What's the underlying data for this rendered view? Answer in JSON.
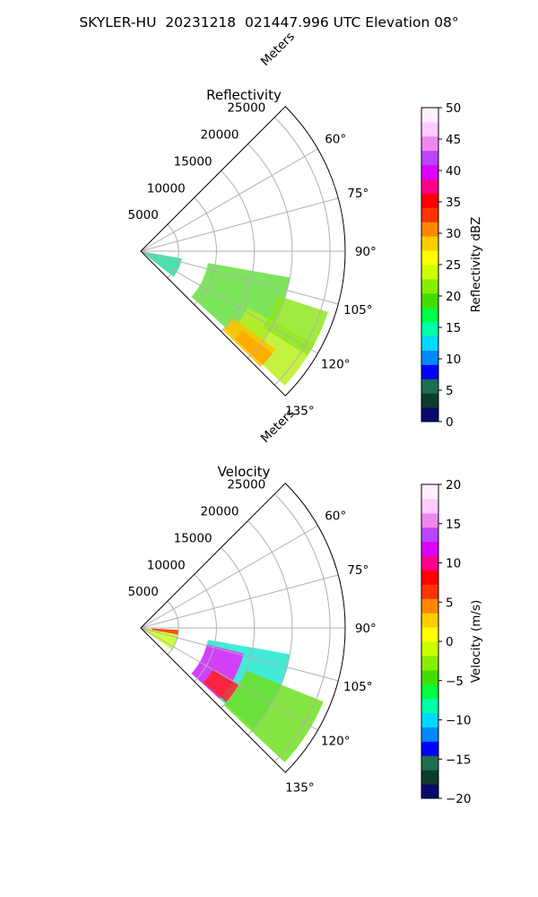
{
  "title": "SKYLER-HU  20231218  021447.996 UTC Elevation 08°",
  "chart_data": [
    {
      "type": "polar_sector",
      "title": "Reflectivity",
      "radial_label": "Meters",
      "radial_ticks": [
        "5000",
        "10000",
        "15000",
        "20000",
        "25000"
      ],
      "radial_tick_values": [
        5000,
        10000,
        15000,
        20000,
        25000
      ],
      "rmax": 27000,
      "theta_min_deg": 45,
      "theta_max_deg": 135,
      "theta_ticks": [
        "60°",
        "75°",
        "90°",
        "105°",
        "120°",
        "135°"
      ],
      "theta_tick_values": [
        60,
        75,
        90,
        105,
        120,
        135
      ],
      "grid": true,
      "colorbar": {
        "label": "Reflectivity dBZ",
        "min": 0,
        "max": 50,
        "ticks": [
          "0",
          "5",
          "10",
          "15",
          "20",
          "25",
          "30",
          "35",
          "40",
          "45",
          "50"
        ],
        "colors": [
          "#0a0a6e",
          "#0b3d2e",
          "#1e6e50",
          "#0000ff",
          "#0088ff",
          "#00d8ff",
          "#00ffaa",
          "#00ff40",
          "#44dd00",
          "#88ee00",
          "#ccff00",
          "#ffff00",
          "#ffcc00",
          "#ff8800",
          "#ff3300",
          "#ff0000",
          "#ff0088",
          "#dd00ff",
          "#bb44ff",
          "#ee88ee",
          "#ffccff",
          "#fff0ff"
        ]
      },
      "echo_regions": [
        {
          "r0": 0,
          "r1": 5500,
          "t0": 100,
          "t1": 128,
          "color": "#20e0a0"
        },
        {
          "r0": 9000,
          "r1": 20000,
          "t0": 100,
          "t1": 132,
          "color": "#66e040"
        },
        {
          "r0": 16000,
          "r1": 26000,
          "t0": 118,
          "t1": 133,
          "color": "#b8f020"
        },
        {
          "r0": 17000,
          "r1": 22000,
          "t0": 128,
          "t1": 133,
          "color": "#ff2a00"
        },
        {
          "r0": 15000,
          "r1": 22000,
          "t0": 126,
          "t1": 134,
          "color": "#ffc000"
        },
        {
          "r0": 19000,
          "r1": 26000,
          "t0": 108,
          "t1": 122,
          "color": "#8ee820"
        }
      ]
    },
    {
      "type": "polar_sector",
      "title": "Velocity",
      "radial_label": "Meters",
      "radial_ticks": [
        "5000",
        "10000",
        "15000",
        "20000",
        "25000"
      ],
      "radial_tick_values": [
        5000,
        10000,
        15000,
        20000,
        25000
      ],
      "rmax": 27000,
      "theta_min_deg": 45,
      "theta_max_deg": 135,
      "theta_ticks": [
        "60°",
        "75°",
        "90°",
        "105°",
        "120°",
        "135°"
      ],
      "theta_tick_values": [
        60,
        75,
        90,
        105,
        120,
        135
      ],
      "grid": true,
      "colorbar": {
        "label": "Velocity (m/s)",
        "min": -20,
        "max": 20,
        "ticks": [
          "−20",
          "−15",
          "−10",
          "−5",
          "0",
          "5",
          "10",
          "15",
          "20"
        ],
        "colors": [
          "#0a0a6e",
          "#0b3d2e",
          "#1e6e50",
          "#0000ff",
          "#0088ff",
          "#00d8ff",
          "#00ffaa",
          "#00ff40",
          "#44dd00",
          "#88ee00",
          "#ccff00",
          "#ffff00",
          "#ffcc00",
          "#ff8800",
          "#ff3300",
          "#ff0000",
          "#ff0088",
          "#dd00ff",
          "#bb44ff",
          "#ee88ee",
          "#ffccff",
          "#fff0ff"
        ]
      },
      "echo_regions": [
        {
          "r0": 0,
          "r1": 5000,
          "t0": 96,
          "t1": 125,
          "color": "#c8ff20"
        },
        {
          "r0": 1500,
          "r1": 5000,
          "t0": 93,
          "t1": 100,
          "color": "#ff3000"
        },
        {
          "r0": 9000,
          "r1": 20000,
          "t0": 100,
          "t1": 132,
          "color": "#20e8d0"
        },
        {
          "r0": 9000,
          "r1": 14000,
          "t0": 104,
          "t1": 132,
          "color": "#ee22ff"
        },
        {
          "r0": 15000,
          "r1": 26000,
          "t0": 112,
          "t1": 133,
          "color": "#70e020"
        },
        {
          "r0": 11000,
          "r1": 15000,
          "t0": 120,
          "t1": 131,
          "color": "#ff2020"
        }
      ]
    }
  ]
}
